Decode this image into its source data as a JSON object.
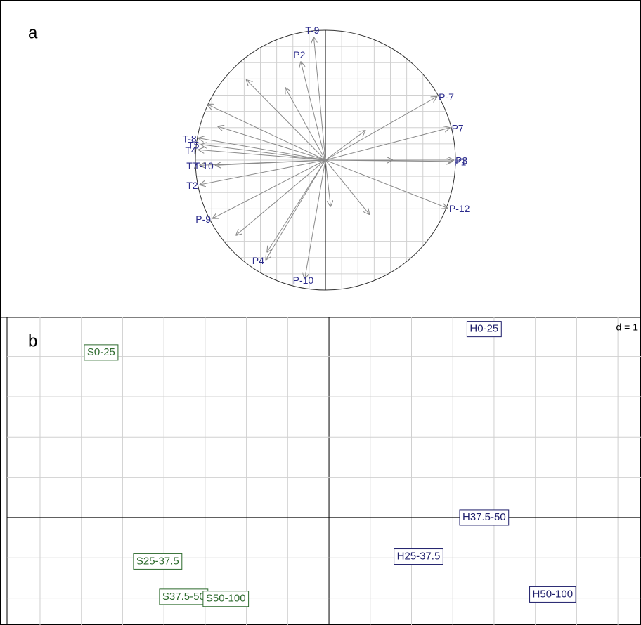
{
  "chart_data": [
    {
      "type": "arrows",
      "label": "a",
      "xlim": [
        -1.2,
        1.2
      ],
      "ylim": [
        -1.2,
        1.2
      ],
      "xticks": [
        -1,
        -0.875,
        -0.75,
        -0.625,
        -0.5,
        -0.375,
        -0.25,
        -0.125,
        0,
        0.125,
        0.25,
        0.375,
        0.5,
        0.625,
        0.75,
        0.875,
        1
      ],
      "yticks": [
        -1,
        -0.875,
        -0.75,
        -0.625,
        -0.5,
        -0.375,
        -0.25,
        -0.125,
        0,
        0.125,
        0.25,
        0.375,
        0.5,
        0.625,
        0.75,
        0.875,
        1
      ],
      "grid": true,
      "color": "#8a8a8a",
      "label_color": "#2b2b8c",
      "labels": [
        "T-9",
        "P2",
        "P-7",
        "P7",
        "P3",
        "P1",
        "P-12",
        "P-10",
        "P4",
        "P-9",
        "T2",
        "T7",
        "T-10",
        "T4",
        "T5",
        "T-8",
        null,
        null,
        null,
        null,
        null,
        null,
        null,
        null,
        null,
        null
      ],
      "x": [
        -0.09,
        -0.19,
        0.86,
        0.96,
        0.99,
        0.98,
        0.94,
        -0.16,
        -0.46,
        -0.87,
        -0.97,
        -0.97,
        -0.85,
        -0.98,
        -0.96,
        -0.98,
        -0.61,
        -0.31,
        -0.91,
        -0.83,
        0.31,
        0.04,
        0.34,
        -0.45,
        -0.69,
        0.52
      ],
      "y": [
        0.95,
        0.76,
        0.49,
        0.25,
        0.0,
        -0.01,
        -0.37,
        -0.92,
        -0.77,
        -0.45,
        -0.19,
        -0.04,
        -0.04,
        0.08,
        0.12,
        0.17,
        0.62,
        0.56,
        0.43,
        0.26,
        0.23,
        -0.36,
        -0.42,
        -0.71,
        -0.58,
        0.0
      ]
    },
    {
      "type": "scatter",
      "label": "b",
      "annotation": "d = 1",
      "xlim": [
        -7.8,
        7.56
      ],
      "ylim": [
        -2.67,
        4.97
      ],
      "xticks": [
        -7,
        -6,
        -5,
        -4,
        -3,
        -2,
        -1,
        0,
        1,
        2,
        3,
        4,
        5,
        6,
        7
      ],
      "yticks": [
        -2,
        -1,
        0,
        1,
        2,
        3,
        4
      ],
      "grid": true,
      "series": [
        {
          "color": "#2e6b2e",
          "labels": [
            "S0-25",
            "S25-37.5",
            "S37.5-50",
            "S50-100"
          ],
          "x": [
            -5.52,
            -4.15,
            -3.52,
            -2.5
          ],
          "y": [
            4.1,
            -1.09,
            -1.97,
            -2.02
          ]
        },
        {
          "color": "#1f1f6b",
          "labels": [
            "H0-25",
            "H37.5-50",
            "H25-37.5",
            "H50-100"
          ],
          "x": [
            3.76,
            3.76,
            2.17,
            5.42
          ],
          "y": [
            4.68,
            0.0,
            -0.97,
            -1.91
          ]
        }
      ]
    }
  ]
}
